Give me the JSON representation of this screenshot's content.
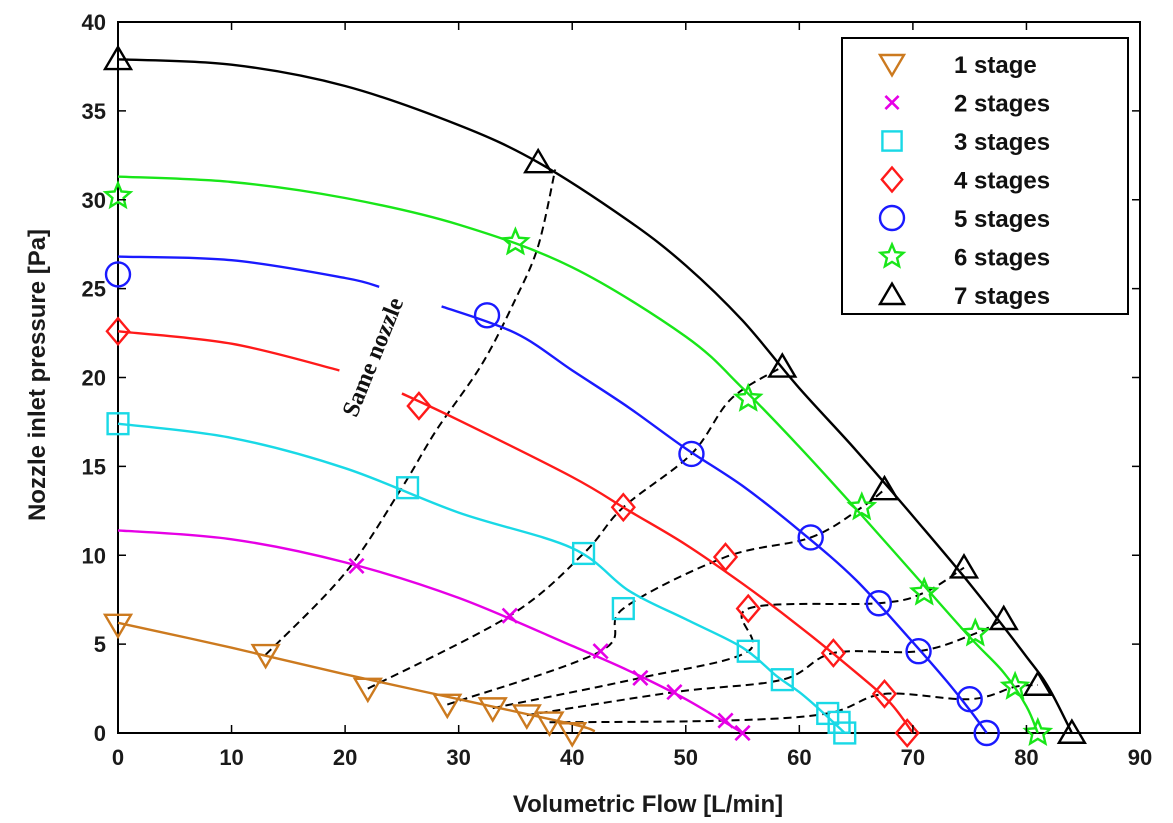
{
  "chart_data": {
    "type": "line",
    "title": "",
    "xlabel": "Volumetric Flow [L/min]",
    "ylabel": "Nozzle inlet pressure [Pa]",
    "xlim": [
      0,
      90
    ],
    "ylim": [
      0,
      40
    ],
    "xticks": [
      0,
      10,
      20,
      30,
      40,
      50,
      60,
      70,
      80,
      90
    ],
    "yticks": [
      0,
      5,
      10,
      15,
      20,
      25,
      30,
      35,
      40
    ],
    "grid": false,
    "legend_position": "top-right",
    "annotation": {
      "text": "Same nozzle"
    },
    "colors": {
      "1 stage": "#cc7a1f",
      "2 stages": "#e600e6",
      "3 stages": "#19d9e6",
      "4 stages": "#ff1a1a",
      "5 stages": "#1a1aff",
      "6 stages": "#19e619",
      "7 stages": "#000000",
      "nozzle_lines": "#000000"
    },
    "series": [
      {
        "name": "1 stage",
        "marker": "triangle-down",
        "curve": [
          [
            0,
            6.2
          ],
          [
            10,
            4.8
          ],
          [
            20,
            3.3
          ],
          [
            30,
            1.9
          ],
          [
            40,
            0.5
          ],
          [
            42,
            0.1
          ]
        ],
        "points": [
          [
            0,
            6.1
          ],
          [
            13,
            4.4
          ],
          [
            22,
            2.5
          ],
          [
            29,
            1.6
          ],
          [
            33,
            1.4
          ],
          [
            36,
            1.0
          ],
          [
            38,
            0.6
          ],
          [
            40,
            0.0
          ]
        ]
      },
      {
        "name": "2 stages",
        "marker": "x",
        "curve": [
          [
            0,
            11.4
          ],
          [
            10,
            10.9
          ],
          [
            20,
            9.6
          ],
          [
            30,
            7.6
          ],
          [
            40,
            4.9
          ],
          [
            45,
            3.5
          ],
          [
            50,
            1.9
          ],
          [
            55,
            0.0
          ]
        ],
        "points": [
          [
            21,
            9.4
          ],
          [
            34.5,
            6.6
          ],
          [
            42.5,
            4.6
          ],
          [
            46,
            3.1
          ],
          [
            49,
            2.3
          ],
          [
            53.5,
            0.7
          ],
          [
            55,
            0.0
          ]
        ]
      },
      {
        "name": "3 stages",
        "marker": "square",
        "curve": [
          [
            0,
            17.4
          ],
          [
            10,
            16.6
          ],
          [
            20,
            14.9
          ],
          [
            30,
            12.4
          ],
          [
            40,
            10.4
          ],
          [
            45,
            8.0
          ],
          [
            50,
            6.4
          ],
          [
            55,
            4.8
          ],
          [
            58,
            3.2
          ],
          [
            60,
            2.3
          ],
          [
            62,
            1.2
          ],
          [
            63,
            0.6
          ],
          [
            64,
            0.0
          ]
        ],
        "points": [
          [
            0,
            17.4
          ],
          [
            25.5,
            13.8
          ],
          [
            41,
            10.1
          ],
          [
            44.5,
            7.0
          ],
          [
            55.5,
            4.6
          ],
          [
            58.5,
            3.0
          ],
          [
            62.5,
            1.1
          ],
          [
            63.5,
            0.6
          ],
          [
            64,
            0.0
          ]
        ]
      },
      {
        "name": "4 stages",
        "marker": "diamond",
        "curve": [
          [
            0,
            22.6
          ],
          [
            10,
            21.9
          ],
          [
            19.5,
            20.4
          ],
          null,
          [
            25,
            19.1
          ],
          [
            30,
            17.6
          ],
          [
            40,
            14.4
          ],
          [
            45,
            12.5
          ],
          [
            50,
            10.6
          ],
          [
            55,
            8.4
          ],
          [
            60,
            6.0
          ],
          [
            65,
            3.4
          ],
          [
            68,
            1.7
          ],
          [
            70,
            0.0
          ]
        ],
        "points": [
          [
            0,
            22.6
          ],
          [
            26.5,
            18.4
          ],
          [
            44.5,
            12.7
          ],
          [
            53.5,
            9.9
          ],
          [
            55.5,
            7.0
          ],
          [
            63,
            4.5
          ],
          [
            67.5,
            2.2
          ],
          [
            69.5,
            0.0
          ]
        ]
      },
      {
        "name": "5 stages",
        "marker": "circle",
        "curve": [
          [
            0,
            26.8
          ],
          [
            10,
            26.6
          ],
          [
            20,
            25.6
          ],
          [
            23,
            25.1
          ],
          null,
          [
            28.5,
            24.0
          ],
          [
            35,
            22.5
          ],
          [
            40,
            20.4
          ],
          [
            45,
            18.3
          ],
          [
            50,
            16.0
          ],
          [
            55,
            13.9
          ],
          [
            60,
            11.4
          ],
          [
            65,
            8.6
          ],
          [
            70,
            5.1
          ],
          [
            73,
            2.9
          ],
          [
            75,
            1.3
          ],
          [
            76.5,
            0.0
          ]
        ],
        "points": [
          [
            0,
            25.8
          ],
          [
            32.5,
            23.5
          ],
          [
            50.5,
            15.7
          ],
          [
            61,
            11.0
          ],
          [
            67,
            7.3
          ],
          [
            70.5,
            4.6
          ],
          [
            75,
            1.9
          ],
          [
            76.5,
            0.0
          ]
        ]
      },
      {
        "name": "6 stages",
        "marker": "star",
        "curve": [
          [
            0,
            31.3
          ],
          [
            10,
            31.0
          ],
          [
            20,
            30.1
          ],
          [
            30,
            28.6
          ],
          [
            40,
            26.2
          ],
          [
            50,
            22.3
          ],
          [
            55,
            19.4
          ],
          [
            60,
            16.1
          ],
          [
            65,
            12.6
          ],
          [
            70,
            9.0
          ],
          [
            75,
            5.4
          ],
          [
            78,
            3.4
          ],
          [
            80,
            1.5
          ],
          [
            81,
            0.0
          ]
        ],
        "points": [
          [
            0,
            30.2
          ],
          [
            35,
            27.6
          ],
          [
            55.5,
            18.8
          ],
          [
            65.5,
            12.7
          ],
          [
            71,
            7.9
          ],
          [
            75.5,
            5.6
          ],
          [
            79,
            2.6
          ],
          [
            81,
            0.0
          ]
        ]
      },
      {
        "name": "7 stages",
        "marker": "triangle-up",
        "curve": [
          [
            0,
            37.9
          ],
          [
            10,
            37.6
          ],
          [
            20,
            36.4
          ],
          [
            30,
            34.2
          ],
          [
            37,
            32.1
          ],
          [
            45,
            28.8
          ],
          [
            50,
            26.3
          ],
          [
            55,
            23.2
          ],
          [
            60,
            19.4
          ],
          [
            65,
            15.9
          ],
          [
            70,
            12.2
          ],
          [
            75,
            8.4
          ],
          [
            80,
            4.3
          ],
          [
            82,
            2.5
          ],
          [
            84,
            0.0
          ]
        ],
        "points": [
          [
            0,
            37.9
          ],
          [
            37,
            32.1
          ],
          [
            58.5,
            20.6
          ],
          [
            67.5,
            13.7
          ],
          [
            74.5,
            9.3
          ],
          [
            78,
            6.4
          ],
          [
            81,
            2.7
          ],
          [
            84,
            0.0
          ]
        ]
      }
    ],
    "nozzle_lines": [
      [
        [
          13,
          4.4
        ],
        [
          20,
          9.0
        ],
        [
          25,
          13.8
        ],
        [
          28,
          17.0
        ],
        [
          32,
          20.7
        ],
        [
          35,
          24.4
        ],
        [
          37,
          27.4
        ],
        [
          38.5,
          31.7
        ]
      ],
      [
        [
          22,
          2.5
        ],
        [
          34.5,
          6.6
        ],
        [
          41,
          10.1
        ],
        [
          44.5,
          12.7
        ],
        [
          50.5,
          15.7
        ],
        [
          54,
          18.8
        ],
        [
          58.5,
          20.6
        ]
      ],
      [
        [
          29,
          1.6
        ],
        [
          42.5,
          4.6
        ],
        [
          44.5,
          7.0
        ],
        [
          53.5,
          9.9
        ],
        [
          61,
          11.0
        ],
        [
          65.5,
          12.7
        ],
        [
          67.5,
          13.7
        ]
      ],
      [
        [
          33,
          1.4
        ],
        [
          46,
          3.1
        ],
        [
          55.5,
          4.6
        ],
        [
          55.5,
          7.0
        ],
        [
          67,
          7.3
        ],
        [
          71,
          7.9
        ],
        [
          74.5,
          9.3
        ]
      ],
      [
        [
          36,
          1.0
        ],
        [
          49,
          2.3
        ],
        [
          58.5,
          3.0
        ],
        [
          63,
          4.5
        ],
        [
          70.5,
          4.6
        ],
        [
          75.5,
          5.6
        ],
        [
          78,
          6.4
        ]
      ],
      [
        [
          38,
          0.6
        ],
        [
          53.5,
          0.7
        ],
        [
          62.5,
          1.1
        ],
        [
          67.5,
          2.2
        ],
        [
          75,
          1.9
        ],
        [
          79,
          2.6
        ],
        [
          81,
          2.7
        ]
      ]
    ]
  }
}
